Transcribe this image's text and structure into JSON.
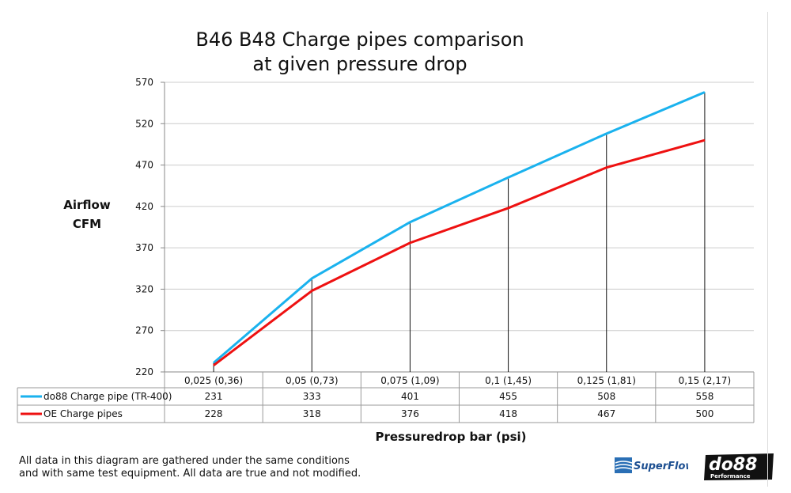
{
  "chart_data": {
    "type": "line",
    "title": "B46 B48 Charge pipes comparison\nat given pressure drop",
    "title_lines": [
      "B46 B48 Charge pipes comparison",
      "at given pressure drop"
    ],
    "xlabel": "Pressuredrop bar (psi)",
    "ylabel_lines": [
      "Airflow",
      "CFM"
    ],
    "categories": [
      "0,025 (0,36)",
      "0,05 (0,73)",
      "0,075 (1,09)",
      "0,1 (1,45)",
      "0,125 (1,81)",
      "0,15 (2,17)"
    ],
    "ylim": [
      220,
      570
    ],
    "yticks": [
      220,
      270,
      320,
      370,
      420,
      470,
      520,
      570
    ],
    "grid": true,
    "legend": "data-table-below",
    "series": [
      {
        "name": "do88 Charge pipe (TR-400)",
        "color": "#1ab2ee",
        "values": [
          231,
          333,
          401,
          455,
          508,
          558
        ]
      },
      {
        "name": "OE Charge pipes",
        "color": "#ee1111",
        "values": [
          228,
          318,
          376,
          418,
          467,
          500
        ]
      }
    ]
  },
  "footer": {
    "note": "All data in this diagram are gathered under the same conditions\nand with same test equipment. All data are true and not modified."
  },
  "logos": {
    "superflow": "SuperFlow",
    "do88": "do88",
    "do88_sub": "Performance"
  }
}
